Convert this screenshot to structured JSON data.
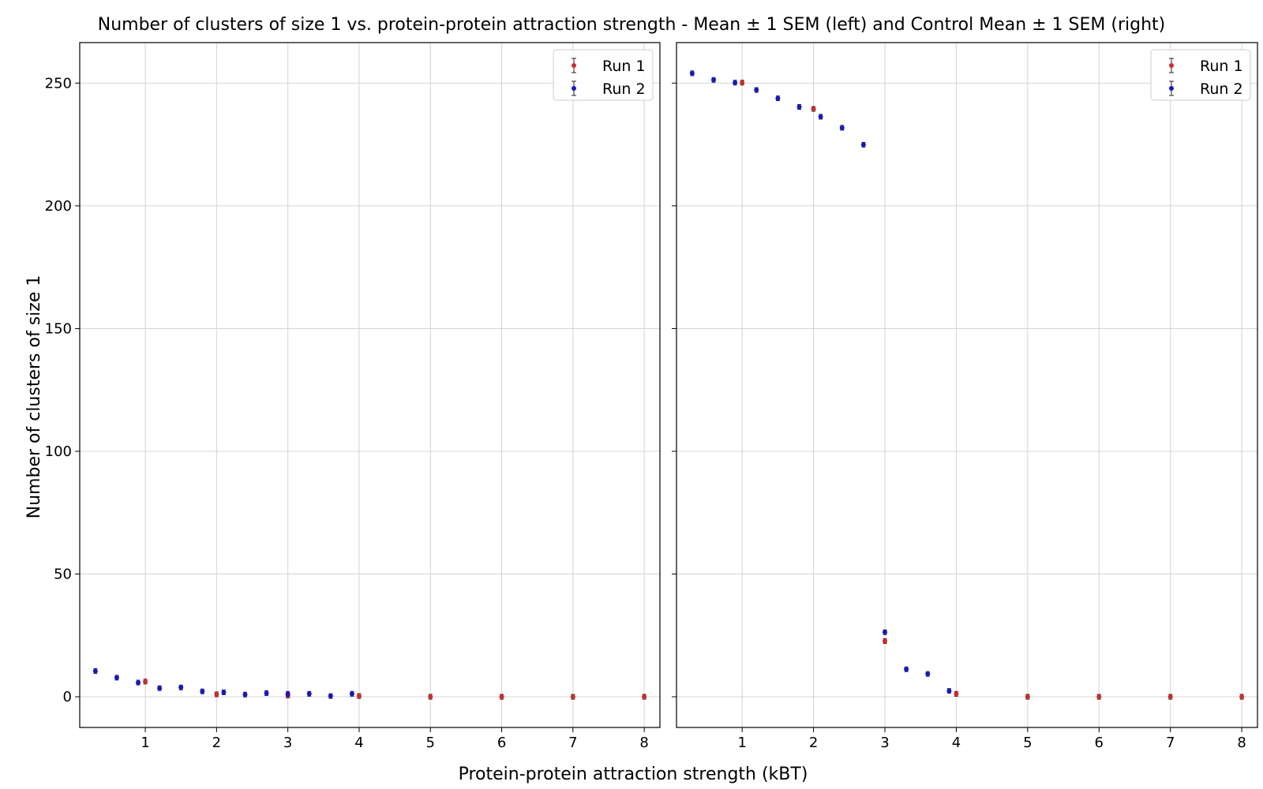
{
  "figure": {
    "title": "Number of clusters of size 1 vs. protein-protein attraction strength - Mean ± 1 SEM (left) and Control Mean ± 1 SEM (right)",
    "xlabel": "Protein-protein attraction strength (kBT)",
    "ylabel": "Number of clusters of size 1"
  },
  "chart_data": [
    {
      "type": "scatter",
      "panel": "left",
      "title": "",
      "xlabel": "Protein-protein attraction strength (kBT)",
      "ylabel": "Number of clusters of size 1",
      "xlim": [
        0.08,
        8.22
      ],
      "ylim": [
        -12.5,
        266.5
      ],
      "xticks": [
        1,
        2,
        3,
        4,
        5,
        6,
        7,
        8
      ],
      "yticks": [
        0,
        50,
        100,
        150,
        200,
        250
      ],
      "grid": true,
      "legend_position": "top-right",
      "series": [
        {
          "name": "Run 1",
          "color": "#d62728",
          "points": [
            {
              "x": 1,
              "y": 6.2
            },
            {
              "x": 2,
              "y": 1.0
            },
            {
              "x": 3,
              "y": 0.5
            },
            {
              "x": 4,
              "y": 0.3
            },
            {
              "x": 5,
              "y": 0.0
            },
            {
              "x": 6,
              "y": 0.0
            },
            {
              "x": 7,
              "y": 0.0
            },
            {
              "x": 8,
              "y": 0.0
            }
          ]
        },
        {
          "name": "Run 2",
          "color": "#1515d0",
          "points": [
            {
              "x": 0.3,
              "y": 10.5
            },
            {
              "x": 0.6,
              "y": 7.8
            },
            {
              "x": 0.9,
              "y": 5.8
            },
            {
              "x": 1.2,
              "y": 3.5
            },
            {
              "x": 1.5,
              "y": 3.8
            },
            {
              "x": 1.8,
              "y": 2.2
            },
            {
              "x": 2.1,
              "y": 1.8
            },
            {
              "x": 2.4,
              "y": 0.9
            },
            {
              "x": 2.7,
              "y": 1.5
            },
            {
              "x": 3.0,
              "y": 1.2
            },
            {
              "x": 3.3,
              "y": 1.2
            },
            {
              "x": 3.6,
              "y": 0.3
            },
            {
              "x": 3.9,
              "y": 1.2
            }
          ]
        }
      ]
    },
    {
      "type": "scatter",
      "panel": "right",
      "title": "",
      "xlabel": "Protein-protein attraction strength (kBT)",
      "ylabel": "Number of clusters of size 1",
      "xlim": [
        0.08,
        8.22
      ],
      "ylim": [
        -12.5,
        266.5
      ],
      "xticks": [
        1,
        2,
        3,
        4,
        5,
        6,
        7,
        8
      ],
      "yticks": [
        0,
        50,
        100,
        150,
        200,
        250
      ],
      "grid": true,
      "legend_position": "top-right",
      "series": [
        {
          "name": "Run 1",
          "color": "#d62728",
          "points": [
            {
              "x": 1,
              "y": 250.2
            },
            {
              "x": 2,
              "y": 239.5
            },
            {
              "x": 3,
              "y": 22.7
            },
            {
              "x": 4,
              "y": 1.2
            },
            {
              "x": 5,
              "y": 0.0
            },
            {
              "x": 6,
              "y": 0.0
            },
            {
              "x": 7,
              "y": 0.0
            },
            {
              "x": 8,
              "y": 0.0
            }
          ]
        },
        {
          "name": "Run 2",
          "color": "#1515d0",
          "points": [
            {
              "x": 0.3,
              "y": 254.0
            },
            {
              "x": 0.6,
              "y": 251.3
            },
            {
              "x": 0.9,
              "y": 250.2
            },
            {
              "x": 1.2,
              "y": 247.2
            },
            {
              "x": 1.5,
              "y": 243.8
            },
            {
              "x": 1.8,
              "y": 240.3
            },
            {
              "x": 2.1,
              "y": 236.3
            },
            {
              "x": 2.4,
              "y": 231.8
            },
            {
              "x": 2.7,
              "y": 224.9
            },
            {
              "x": 3.0,
              "y": 26.3
            },
            {
              "x": 3.3,
              "y": 11.2
            },
            {
              "x": 3.6,
              "y": 9.3
            },
            {
              "x": 3.9,
              "y": 2.4
            }
          ]
        }
      ]
    }
  ]
}
